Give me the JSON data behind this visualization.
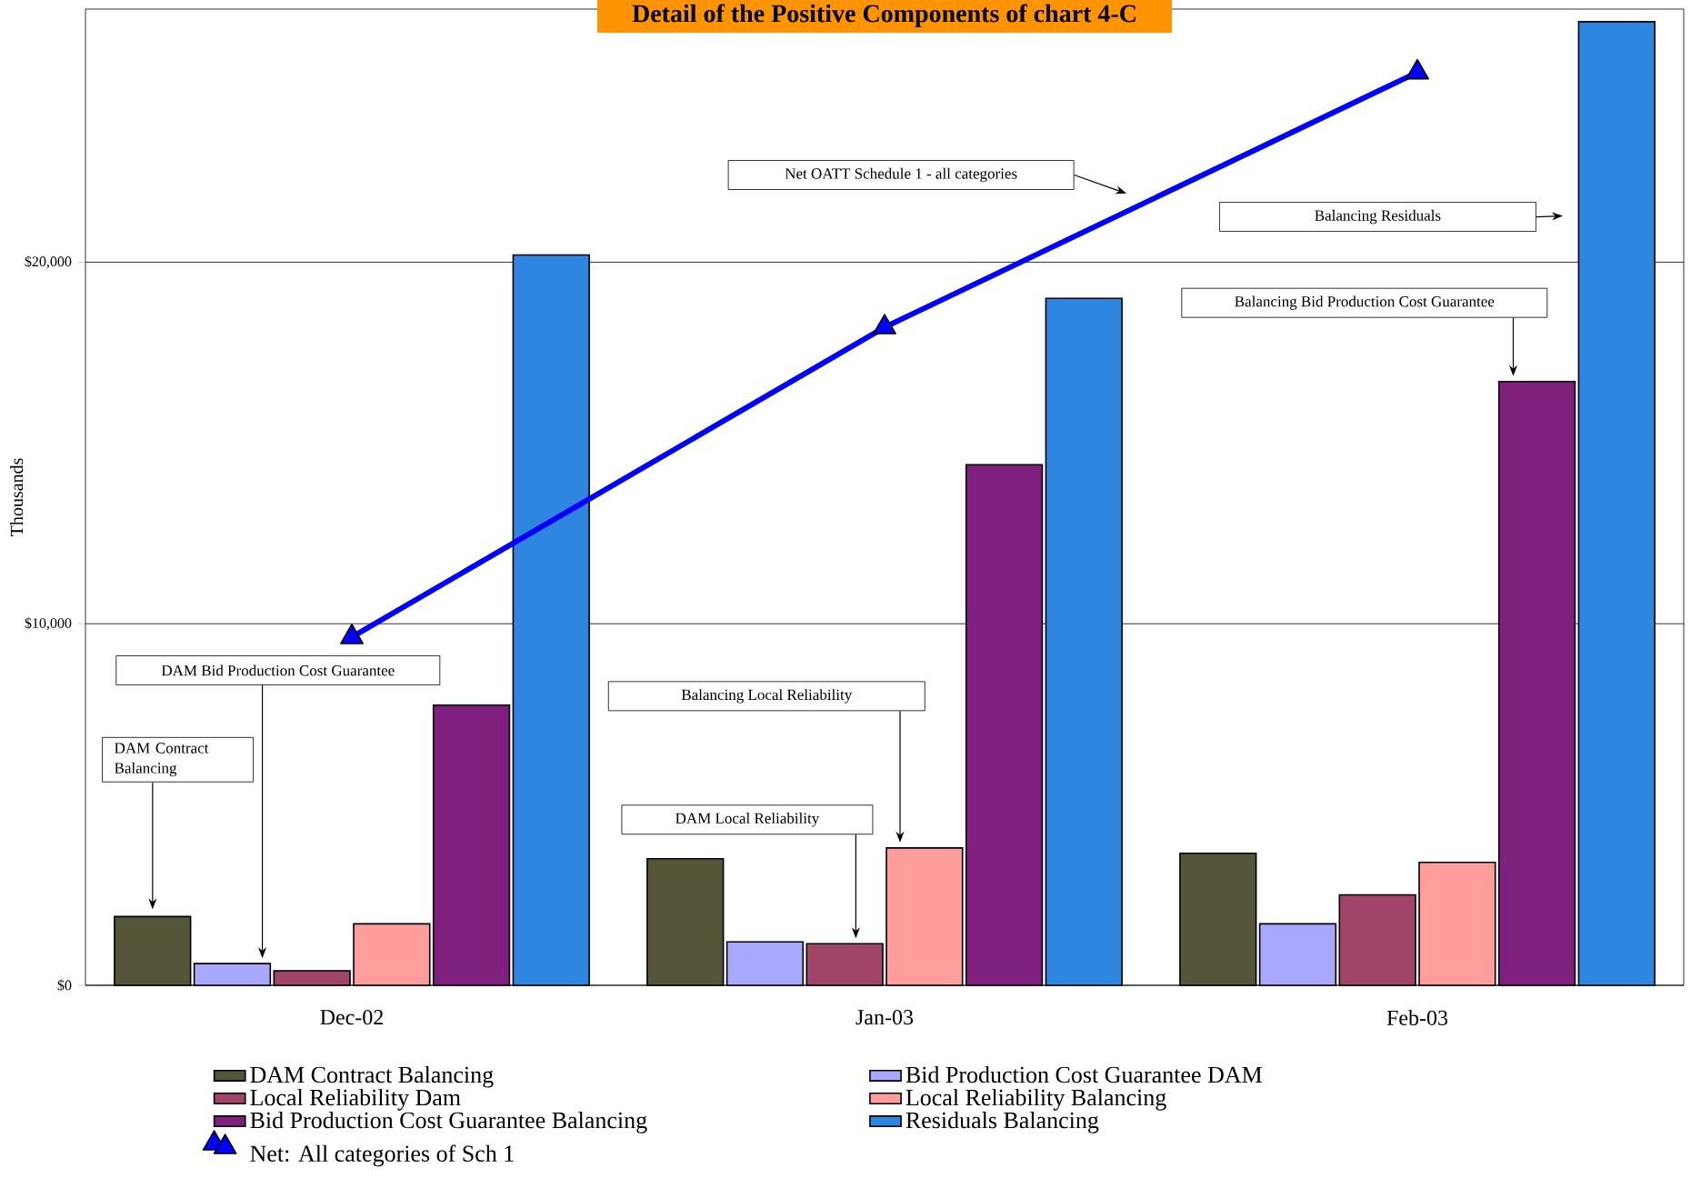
{
  "chart_data": {
    "type": "bar",
    "title": "Detail of the Positive Components of chart 4-C",
    "ylabel": "Thousands",
    "categories": [
      "Dec-02",
      "Jan-03",
      "Feb-03"
    ],
    "series": [
      {
        "name": "DAM Contract Balancing",
        "color": "#55553a",
        "values": [
          1900,
          3500,
          3650
        ]
      },
      {
        "name": "Bid Production Cost Guarantee DAM",
        "color": "#a8a8ff",
        "values": [
          600,
          1200,
          1700
        ]
      },
      {
        "name": "Local Reliability Dam",
        "color": "#a0446a",
        "values": [
          400,
          1150,
          2500
        ]
      },
      {
        "name": "Local Reliability Balancing",
        "color": "#ff9c9c",
        "values": [
          1700,
          3800,
          3400
        ]
      },
      {
        "name": "Bid Production Cost Guarantee Balancing",
        "color": "#80207e",
        "values": [
          7750,
          14400,
          16700
        ]
      },
      {
        "name": "Residuals Balancing",
        "color": "#2f86e0",
        "values": [
          20200,
          19000,
          26650
        ]
      },
      {
        "name": "Net: All categories of Sch 1",
        "type": "line",
        "color": "#0000ff",
        "marker": "triangle",
        "values": [
          9630,
          18200,
          25250
        ]
      }
    ],
    "ylim": [
      0,
      27000
    ],
    "yticks": [
      {
        "value": 0,
        "label": "$0"
      },
      {
        "value": 10000,
        "label": "$10,000"
      },
      {
        "value": 20000,
        "label": "$20,000"
      }
    ],
    "grid": "y",
    "legend": "bottom",
    "annotations": [
      "DAM Contract Balancing",
      "DAM Bid Production Cost Guarantee",
      "Balancing Local Reliability",
      "DAM Local Reliability",
      "Net OATT Schedule 1 - all categories",
      "Balancing Residuals",
      "Balancing Bid Production Cost Guarantee"
    ]
  }
}
